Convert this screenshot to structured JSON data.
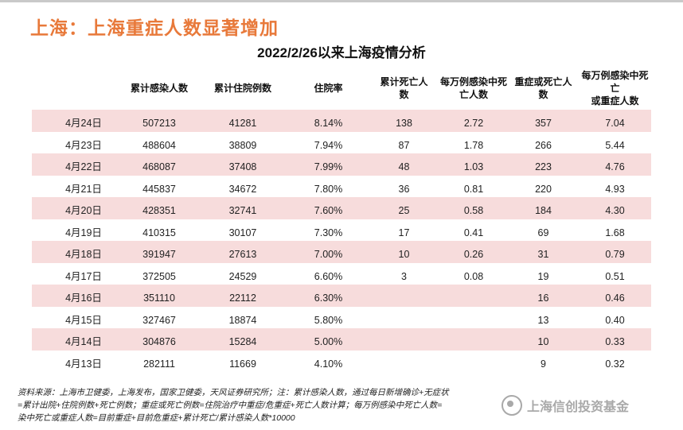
{
  "heading": "上海：上海重症人数显著增加",
  "subtitle": "2022/2/26以来上海疫情分析",
  "columns": [
    "",
    "累计感染人数",
    "累计住院例数",
    "住院率",
    "累计死亡人\n数",
    "每万例感染中死\n亡人数",
    "重症或死亡人\n数",
    "每万例感染中死亡\n或重症人数"
  ],
  "rows": [
    {
      "date": "4月24日",
      "infected": "507213",
      "hospitalized": "41281",
      "rate": "8.14%",
      "deaths": "138",
      "death_per_10k": "2.72",
      "severe_or_dead": "357",
      "severe_per_10k": "7.04"
    },
    {
      "date": "4月23日",
      "infected": "488604",
      "hospitalized": "38809",
      "rate": "7.94%",
      "deaths": "87",
      "death_per_10k": "1.78",
      "severe_or_dead": "266",
      "severe_per_10k": "5.44"
    },
    {
      "date": "4月22日",
      "infected": "468087",
      "hospitalized": "37408",
      "rate": "7.99%",
      "deaths": "48",
      "death_per_10k": "1.03",
      "severe_or_dead": "223",
      "severe_per_10k": "4.76"
    },
    {
      "date": "4月21日",
      "infected": "445837",
      "hospitalized": "34672",
      "rate": "7.80%",
      "deaths": "36",
      "death_per_10k": "0.81",
      "severe_or_dead": "220",
      "severe_per_10k": "4.93"
    },
    {
      "date": "4月20日",
      "infected": "428351",
      "hospitalized": "32741",
      "rate": "7.60%",
      "deaths": "25",
      "death_per_10k": "0.58",
      "severe_or_dead": "184",
      "severe_per_10k": "4.30"
    },
    {
      "date": "4月19日",
      "infected": "410315",
      "hospitalized": "30107",
      "rate": "7.30%",
      "deaths": "17",
      "death_per_10k": "0.41",
      "severe_or_dead": "69",
      "severe_per_10k": "1.68"
    },
    {
      "date": "4月18日",
      "infected": "391947",
      "hospitalized": "27613",
      "rate": "7.00%",
      "deaths": "10",
      "death_per_10k": "0.26",
      "severe_or_dead": "31",
      "severe_per_10k": "0.79"
    },
    {
      "date": "4月17日",
      "infected": "372505",
      "hospitalized": "24529",
      "rate": "6.60%",
      "deaths": "3",
      "death_per_10k": "0.08",
      "severe_or_dead": "19",
      "severe_per_10k": "0.51"
    },
    {
      "date": "4月16日",
      "infected": "351110",
      "hospitalized": "22112",
      "rate": "6.30%",
      "deaths": "",
      "death_per_10k": "",
      "severe_or_dead": "16",
      "severe_per_10k": "0.46"
    },
    {
      "date": "4月15日",
      "infected": "327467",
      "hospitalized": "18874",
      "rate": "5.80%",
      "deaths": "",
      "death_per_10k": "",
      "severe_or_dead": "13",
      "severe_per_10k": "0.40"
    },
    {
      "date": "4月14日",
      "infected": "304876",
      "hospitalized": "15284",
      "rate": "5.00%",
      "deaths": "",
      "death_per_10k": "",
      "severe_or_dead": "10",
      "severe_per_10k": "0.33"
    },
    {
      "date": "4月13日",
      "infected": "282111",
      "hospitalized": "11669",
      "rate": "4.10%",
      "deaths": "",
      "death_per_10k": "",
      "severe_or_dead": "9",
      "severe_per_10k": "0.32"
    }
  ],
  "footer_lines": [
    "资料来源：上海市卫健委，上海发布，国家卫健委，天风证券研究所；注：累计感染人数，通过每日新增确诊+无症状",
    "=累计出院+住院例数+死亡例数；重症或死亡例数=住院治疗中重症/危重症+死亡人数计算；每万例感染中死亡人数=",
    "染中死亡或重症人数=目前重症+目前危重症+累计死亡/累计感染人数*10000"
  ],
  "watermark": "上海信创投资基金",
  "colors": {
    "heading": "#e8793a",
    "row_shade": "#f7dcdc"
  }
}
